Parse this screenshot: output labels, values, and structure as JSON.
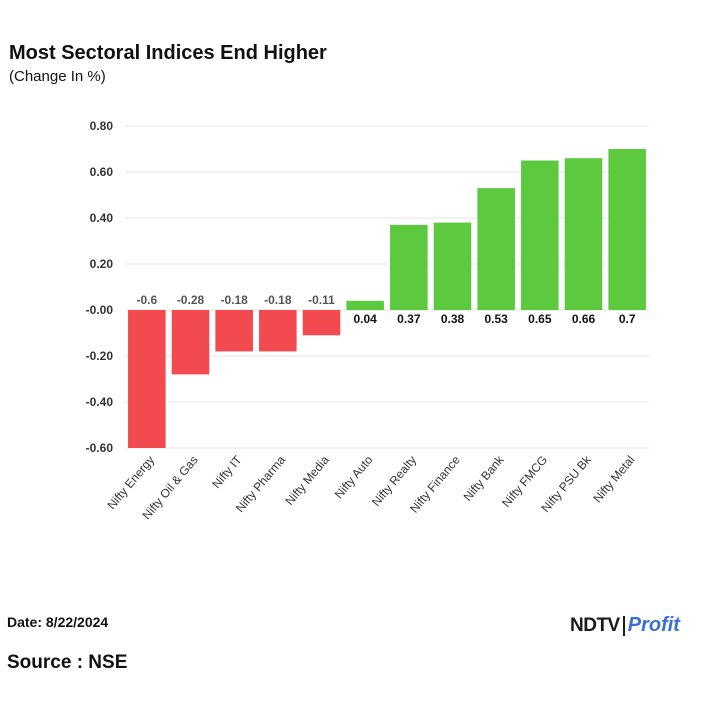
{
  "header": {
    "title": "Most Sectoral Indices End Higher",
    "subtitle": "(Change In %)"
  },
  "footer": {
    "date": "Date: 8/22/2024",
    "source": "Source : NSE",
    "logo_ndtv": "NDTV",
    "logo_profit": "Profit"
  },
  "colors": {
    "negative": "#f24a4f",
    "positive": "#5cc93f",
    "grid": "#e6e6e6",
    "negative_label": "#555555",
    "positive_label": "#111111"
  },
  "chart_data": {
    "type": "bar",
    "title": "Most Sectoral Indices End Higher",
    "subtitle": "(Change In %)",
    "xlabel": "",
    "ylabel": "",
    "ylim": [
      -0.6,
      0.8
    ],
    "yticks": [
      0.8,
      0.6,
      0.4,
      0.2,
      0.0,
      -0.2,
      -0.4,
      -0.6
    ],
    "ytick_labels": [
      "0.80",
      "0.60",
      "0.40",
      "0.20",
      "-0.00",
      "-0.20",
      "-0.40",
      "-0.60"
    ],
    "grid": true,
    "legend": "none",
    "categories": [
      "Nifty Energy",
      "Nifty Oil & Gas",
      "Nifty IT",
      "Nifty Pharma",
      "Nifty Media",
      "Nifty Auto",
      "Nifty Realty",
      "Nifty Finance",
      "Nifty Bank",
      "Nifty FMCG",
      "Nifty PSU Bk",
      "Nifty Metal"
    ],
    "values": [
      -0.6,
      -0.28,
      -0.18,
      -0.18,
      -0.11,
      0.04,
      0.37,
      0.38,
      0.53,
      0.65,
      0.66,
      0.7
    ],
    "value_labels": [
      "-0.6",
      "-0.28",
      "-0.18",
      "-0.18",
      "-0.11",
      "0.04",
      "0.37",
      "0.38",
      "0.53",
      "0.65",
      "0.66",
      "0.7"
    ]
  }
}
